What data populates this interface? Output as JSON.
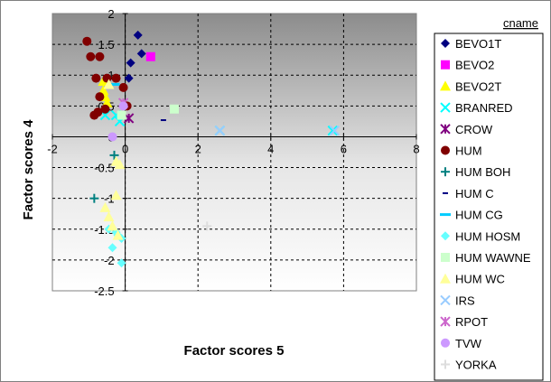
{
  "chart_data": {
    "type": "scatter",
    "xlabel": "Factor scores 5",
    "ylabel": "Factor scores 4",
    "xlim": [
      -2,
      8
    ],
    "ylim": [
      -2.5,
      2
    ],
    "x_ticks": [
      "-2",
      "0",
      "2",
      "4",
      "6",
      "8"
    ],
    "y_ticks": [
      "2",
      "1.5",
      "1",
      "0.5",
      "0",
      "-0.5",
      "-1",
      "-1.5",
      "-2",
      "-2.5"
    ],
    "x_tick_values": [
      -2,
      0,
      2,
      4,
      6,
      8
    ],
    "y_tick_values": [
      2,
      1.5,
      1,
      0.5,
      0,
      -0.5,
      -1,
      -1.5,
      -2,
      -2.5
    ],
    "grid": true,
    "background": "gradient gray to white",
    "legend": {
      "title": "cname",
      "placement": "right"
    },
    "series": [
      {
        "name": "BEVO1T",
        "marker": "diamond",
        "color": "#000080",
        "points": [
          [
            0.35,
            1.65
          ],
          [
            0.45,
            1.35
          ],
          [
            0.15,
            1.2
          ],
          [
            0.1,
            0.95
          ]
        ]
      },
      {
        "name": "BEVO2",
        "marker": "square",
        "color": "#ff00ff",
        "points": [
          [
            0.7,
            1.3
          ]
        ]
      },
      {
        "name": "BEVO2T",
        "marker": "triangle",
        "color": "#ffff00",
        "points": [
          [
            -0.6,
            0.9
          ],
          [
            -0.6,
            0.75
          ],
          [
            -0.55,
            0.65
          ],
          [
            -0.5,
            0.55
          ]
        ]
      },
      {
        "name": "BRANRED",
        "marker": "x",
        "color": "#00ffff",
        "points": [
          [
            2.6,
            0.1
          ],
          [
            5.7,
            0.1
          ],
          [
            -0.55,
            0.35
          ],
          [
            -0.25,
            0.35
          ],
          [
            -0.15,
            0.25
          ]
        ]
      },
      {
        "name": "CROW",
        "marker": "star",
        "color": "#800080",
        "points": [
          [
            0.1,
            0.3
          ]
        ]
      },
      {
        "name": "HUM",
        "marker": "circle",
        "color": "#800000",
        "points": [
          [
            -1.05,
            1.55
          ],
          [
            -0.95,
            1.3
          ],
          [
            -0.7,
            1.3
          ],
          [
            -0.8,
            0.95
          ],
          [
            -0.7,
            0.65
          ],
          [
            -0.55,
            0.45
          ],
          [
            -0.75,
            0.4
          ],
          [
            -0.85,
            0.35
          ],
          [
            -0.5,
            0.95
          ],
          [
            -0.25,
            0.95
          ],
          [
            -0.05,
            0.8
          ],
          [
            0.05,
            0.5
          ]
        ]
      },
      {
        "name": "HUM BOH",
        "marker": "plus",
        "color": "#008080",
        "points": [
          [
            -0.3,
            -0.3
          ],
          [
            -0.85,
            -1.0
          ]
        ]
      },
      {
        "name": "HUM C",
        "marker": "dash",
        "color": "#000080",
        "points": [
          [
            1.05,
            0.27
          ]
        ]
      },
      {
        "name": "HUM CG",
        "marker": "longdash",
        "color": "#00ccff",
        "points": [
          [
            -0.3,
            0.85
          ]
        ]
      },
      {
        "name": "HUM HOSM",
        "marker": "diamond",
        "color": "#66ffff",
        "points": [
          [
            -0.45,
            -1.5
          ],
          [
            -0.25,
            -1.55
          ],
          [
            -0.1,
            -1.65
          ],
          [
            -0.35,
            -1.8
          ],
          [
            -0.1,
            -2.05
          ],
          [
            -0.2,
            -1.6
          ]
        ]
      },
      {
        "name": "HUM WAWNE",
        "marker": "square",
        "color": "#ccffcc",
        "points": [
          [
            1.35,
            0.45
          ],
          [
            -0.1,
            0.35
          ]
        ]
      },
      {
        "name": "HUM WC",
        "marker": "triangle",
        "color": "#ffff99",
        "points": [
          [
            -0.15,
            -0.45
          ],
          [
            -0.25,
            -0.4
          ],
          [
            -0.25,
            -0.95
          ],
          [
            -0.55,
            -1.15
          ],
          [
            -0.45,
            -1.3
          ],
          [
            -0.35,
            -1.45
          ],
          [
            -0.2,
            -1.6
          ],
          [
            -0.45,
            0.85
          ]
        ]
      },
      {
        "name": "IRS",
        "marker": "x",
        "color": "#99ccff",
        "points": [
          [
            2.6,
            0.1
          ],
          [
            5.75,
            0.1
          ]
        ]
      },
      {
        "name": "RPOT",
        "marker": "star",
        "color": "#cc66cc",
        "points": [
          [
            -0.05,
            0.55
          ]
        ]
      },
      {
        "name": "TVW",
        "marker": "circle",
        "color": "#cc99ff",
        "points": [
          [
            -0.05,
            0.5
          ],
          [
            -0.35,
            0.0
          ]
        ]
      },
      {
        "name": "YORKA",
        "marker": "plus",
        "color": "#dddddd",
        "points": [
          [
            2.25,
            -1.45
          ]
        ]
      }
    ]
  }
}
